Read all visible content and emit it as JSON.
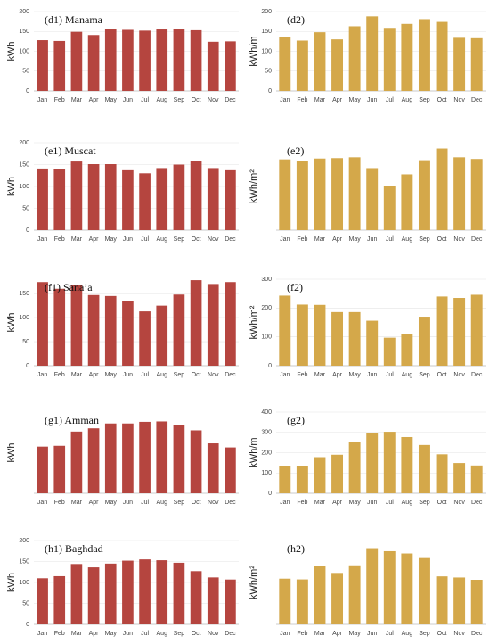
{
  "chart_data": [
    {
      "type": "bar",
      "title": "(d1) Manama",
      "y_label": "kWh",
      "color": "#b5453f",
      "categories": [
        "Jan",
        "Feb",
        "Mar",
        "Apr",
        "May",
        "Jun",
        "Jul",
        "Aug",
        "Sep",
        "Oct",
        "Nov",
        "Dec"
      ],
      "values": [
        128,
        126,
        149,
        141,
        156,
        154,
        152,
        155,
        156,
        153,
        124,
        125
      ],
      "ylim": [
        0,
        200
      ],
      "yticks": [
        0,
        50,
        100,
        150,
        200
      ]
    },
    {
      "type": "bar",
      "title": "(d2)",
      "y_label": "kWh/m",
      "color": "#d4a84a",
      "categories": [
        "Jan",
        "Feb",
        "Mar",
        "Apr",
        "May",
        "Jun",
        "Jul",
        "Aug",
        "Sep",
        "Oct",
        "Nov",
        "Dec"
      ],
      "values": [
        135,
        127,
        148,
        130,
        163,
        188,
        159,
        169,
        181,
        174,
        134,
        133
      ],
      "ylim": [
        0,
        200
      ],
      "yticks": [
        0,
        50,
        100,
        150,
        200
      ]
    },
    {
      "type": "bar",
      "title": "(e1) Muscat",
      "y_label": "kWh",
      "color": "#b5453f",
      "categories": [
        "Jan",
        "Feb",
        "Mar",
        "Apr",
        "May",
        "Jun",
        "Jul",
        "Aug",
        "Sep",
        "Oct",
        "Nov",
        "Dec"
      ],
      "values": [
        141,
        139,
        157,
        151,
        151,
        137,
        130,
        142,
        150,
        158,
        142,
        137
      ],
      "ylim": [
        0,
        200
      ],
      "yticks": [
        0,
        50,
        100,
        150,
        200
      ]
    },
    {
      "type": "bar",
      "title": "(e2)",
      "y_label": "kWh/m²",
      "color": "#d4a84a",
      "categories": [
        "Jan",
        "Feb",
        "Mar",
        "Apr",
        "May",
        "Jun",
        "Jul",
        "Aug",
        "Sep",
        "Oct",
        "Nov",
        "Dec"
      ],
      "values": [
        170,
        166,
        172,
        173,
        175,
        149,
        106,
        134,
        168,
        196,
        175,
        171
      ],
      "ylim": [
        0,
        210
      ]
    },
    {
      "type": "bar",
      "title": "(f1) Sana’a",
      "y_label": "kWh",
      "color": "#b5453f",
      "categories": [
        "Jan",
        "Feb",
        "Mar",
        "Apr",
        "May",
        "Jun",
        "Jul",
        "Aug",
        "Sep",
        "Oct",
        "Nov",
        "Dec"
      ],
      "values": [
        174,
        160,
        168,
        147,
        145,
        134,
        113,
        125,
        148,
        178,
        170,
        174
      ],
      "ylim": [
        0,
        180
      ],
      "yticks": [
        0,
        50,
        100,
        150
      ]
    },
    {
      "type": "bar",
      "title": "(f2)",
      "y_label": "kWh/m²",
      "color": "#d4a84a",
      "categories": [
        "Jan",
        "Feb",
        "Mar",
        "Apr",
        "May",
        "Jun",
        "Jul",
        "Aug",
        "Sep",
        "Oct",
        "Nov",
        "Dec"
      ],
      "values": [
        243,
        212,
        211,
        186,
        186,
        156,
        97,
        111,
        170,
        240,
        235,
        246
      ],
      "ylim": [
        0,
        300
      ],
      "yticks": [
        0,
        100,
        200,
        300
      ]
    },
    {
      "type": "bar",
      "title": "(g1) Amman",
      "y_label": "kWh",
      "color": "#b5453f",
      "categories": [
        "Jan",
        "Feb",
        "Mar",
        "Apr",
        "May",
        "Jun",
        "Jul",
        "Aug",
        "Sep",
        "Oct",
        "Nov",
        "Dec"
      ],
      "values": [
        115,
        117,
        152,
        160,
        172,
        172,
        176,
        177,
        168,
        155,
        123,
        113
      ],
      "ylim": [
        0,
        200
      ]
    },
    {
      "type": "bar",
      "title": "(g2)",
      "y_label": "kWh/m",
      "color": "#d4a84a",
      "categories": [
        "Jan",
        "Feb",
        "Mar",
        "Apr",
        "May",
        "Jun",
        "Jul",
        "Aug",
        "Sep",
        "Oct",
        "Nov",
        "Dec"
      ],
      "values": [
        133,
        133,
        178,
        190,
        252,
        298,
        303,
        277,
        238,
        192,
        149,
        137
      ],
      "ylim": [
        0,
        400
      ],
      "yticks": [
        0,
        100,
        200,
        300,
        400
      ]
    },
    {
      "type": "bar",
      "title": "(h1) Baghdad",
      "y_label": "kWh",
      "color": "#b5453f",
      "categories": [
        "Jan",
        "Feb",
        "Mar",
        "Apr",
        "May",
        "Jun",
        "Jul",
        "Aug",
        "Sep",
        "Oct",
        "Nov",
        "Dec"
      ],
      "values": [
        110,
        115,
        144,
        136,
        145,
        152,
        155,
        153,
        147,
        127,
        112,
        107
      ],
      "ylim": [
        0,
        200
      ],
      "yticks": [
        0,
        50,
        100,
        150,
        200
      ]
    },
    {
      "type": "bar",
      "title": "(h2)",
      "y_label": "kWh/m²",
      "color": "#d4a84a",
      "categories": [
        "Jan",
        "Feb",
        "Mar",
        "Apr",
        "May",
        "Jun",
        "Jul",
        "Aug",
        "Sep",
        "Oct",
        "Nov",
        "Dec"
      ],
      "values": [
        120,
        118,
        153,
        135,
        155,
        200,
        192,
        186,
        174,
        126,
        123,
        117
      ],
      "ylim": [
        0,
        220
      ]
    }
  ]
}
